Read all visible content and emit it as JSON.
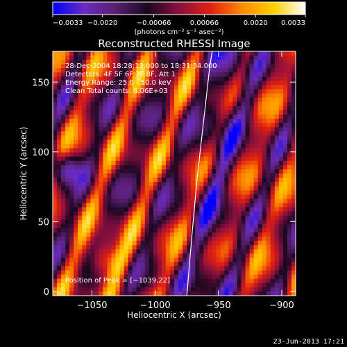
{
  "chart_data": {
    "type": "heatmap",
    "title": "Reconstructed RHESSI Image",
    "xlabel": "Heliocentric X (arcsec)",
    "ylabel": "Heliocentric Y (arcsec)",
    "xlim": [
      -1081,
      -889
    ],
    "ylim": [
      -3,
      172
    ],
    "x_ticks": [
      {
        "value": -1050,
        "label": "−1050"
      },
      {
        "value": -1000,
        "label": "−1000"
      },
      {
        "value": -950,
        "label": "−950"
      },
      {
        "value": -900,
        "label": "−900"
      }
    ],
    "y_ticks": [
      {
        "value": 0,
        "label": "0"
      },
      {
        "value": 50,
        "label": "50"
      },
      {
        "value": 100,
        "label": "100"
      },
      {
        "value": 150,
        "label": "150"
      }
    ],
    "colorbar": {
      "min": -0.0033,
      "max": 0.0033,
      "ticks": [
        {
          "value": -0.0033,
          "label": "−0.0033"
        },
        {
          "value": -0.002,
          "label": "−0.0020"
        },
        {
          "value": -0.00066,
          "label": "−0.00066"
        },
        {
          "value": 0.00066,
          "label": "0.00066"
        },
        {
          "value": 0.002,
          "label": "0.0020"
        },
        {
          "value": 0.0033,
          "label": "0.0033"
        }
      ],
      "unit_label": "(photons cm⁻² s⁻¹ asec⁻²)",
      "colormap": [
        "#0000ff",
        "#6a2cc0",
        "#5a1f72",
        "#1a0820",
        "#8a1040",
        "#e02010",
        "#ff8a00",
        "#ffd000",
        "#ffffff"
      ]
    },
    "annotations": [
      "28-Dec-2004 18:28:12.000 to 18:31:34.000",
      "Detectors: 4F 5F 6F 7F 8F, Att 1",
      "Energy Range: 25.0 - 50.0 keV",
      "Clean    Total counts: 6.06E+03"
    ],
    "peak_label": "Position of Peak = [−1039,22]",
    "peak": [
      -1039,
      22
    ],
    "limb": [
      {
        "x": -975,
        "y": -3
      },
      {
        "x": -971,
        "y": 40
      },
      {
        "x": -967,
        "y": 80
      },
      {
        "x": -962,
        "y": 120
      },
      {
        "x": -957,
        "y": 160
      },
      {
        "x": -955,
        "y": 172
      }
    ]
  },
  "footer": {
    "date": "23-Jun-2013 17:21"
  }
}
